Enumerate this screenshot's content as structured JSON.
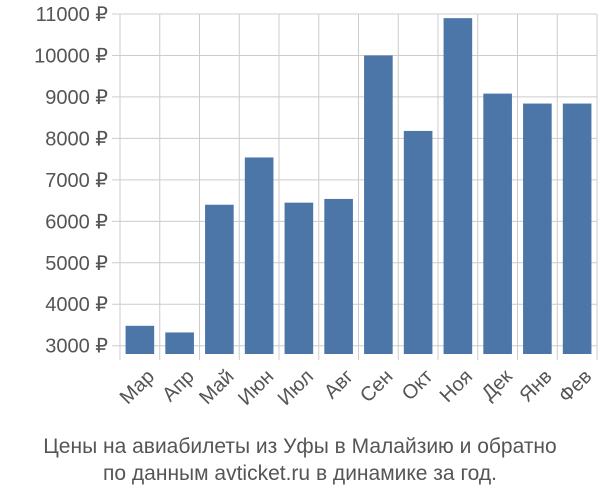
{
  "chart_data": {
    "type": "bar",
    "categories": [
      "Мар",
      "Апр",
      "Май",
      "Июн",
      "Июл",
      "Авг",
      "Сен",
      "Окт",
      "Ноя",
      "Дек",
      "Янв",
      "Фев"
    ],
    "values": [
      3480,
      3320,
      6400,
      7540,
      6450,
      6540,
      10000,
      8180,
      10900,
      9080,
      8840,
      8840
    ],
    "ylim": [
      2800,
      11000
    ],
    "yticks": [
      3000,
      4000,
      5000,
      6000,
      7000,
      8000,
      9000,
      10000,
      11000
    ],
    "ytick_labels": [
      "3000 ₽",
      "4000 ₽",
      "5000 ₽",
      "6000 ₽",
      "7000 ₽",
      "8000 ₽",
      "9000 ₽",
      "10000 ₽",
      "11000 ₽"
    ],
    "grid": true,
    "colors": {
      "bar": "#4d76a8",
      "grid": "#cccccc",
      "tick_text": "#555555"
    },
    "caption": [
      "Цены на авиабилеты из Уфы в Малайзию и обратно",
      "по данным avticket.ru в динамике за год."
    ]
  }
}
